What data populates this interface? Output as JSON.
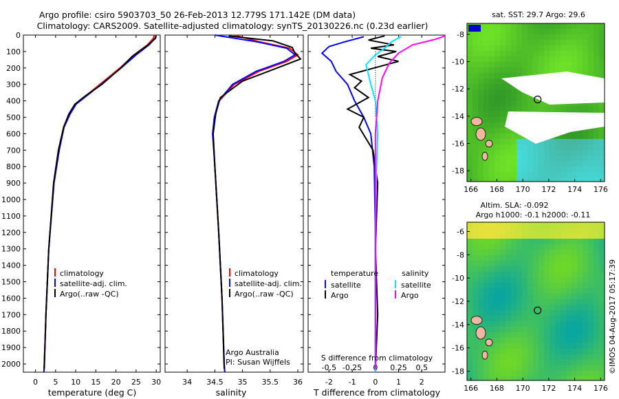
{
  "header": {
    "line1": "Argo profile: csiro 5903703_50 26-Feb-2013 12.779S 171.142E (DM data)",
    "line2": "Climatology: CARS2009. Satellite-adjusted climatology: synTS_20130226.nc (0.23d earlier)"
  },
  "colors": {
    "climatology": "#ff0000",
    "satellite": "#0000ff",
    "argo": "#000000",
    "sat_salinity": "#00e5ff",
    "argo_salinity": "#ff00ff"
  },
  "chart_data": [
    {
      "type": "line",
      "id": "temperature",
      "xlabel": "temperature (deg C)",
      "ylabel": "",
      "xticks": [
        0,
        5,
        10,
        15,
        20,
        25,
        30
      ],
      "xlim": [
        -3,
        31
      ],
      "yticks": [
        0,
        100,
        200,
        300,
        400,
        500,
        600,
        700,
        800,
        900,
        1000,
        1100,
        1200,
        1300,
        1400,
        1500,
        1600,
        1700,
        1800,
        1900,
        2000
      ],
      "ylim": [
        0,
        2050
      ],
      "legend": [
        "climatology",
        "satellite-adj. clim.",
        "Argo(..raw -QC)"
      ],
      "series": [
        {
          "name": "climatology",
          "color": "#ff0000",
          "x": [
            29.5,
            29.3,
            27.8,
            24.5,
            21.0,
            16.0,
            12.5,
            10.0,
            8.5,
            7.0,
            5.8,
            4.6,
            3.3,
            2.6,
            2.2,
            2.1
          ],
          "y": [
            0,
            20,
            60,
            120,
            200,
            300,
            370,
            420,
            480,
            560,
            700,
            900,
            1300,
            1700,
            2000,
            2050
          ]
        },
        {
          "name": "satellite-adj. clim.",
          "color": "#0000ff",
          "x": [
            30.0,
            29.7,
            28.2,
            25.0,
            21.3,
            16.3,
            12.7,
            10.1,
            8.6,
            7.1,
            5.9,
            4.6,
            3.3,
            2.6,
            2.2,
            2.1
          ],
          "y": [
            0,
            20,
            60,
            120,
            200,
            300,
            370,
            420,
            480,
            560,
            700,
            900,
            1300,
            1700,
            2000,
            2050
          ]
        },
        {
          "name": "Argo(..raw -QC)",
          "color": "#000000",
          "x": [
            29.9,
            29.8,
            28.0,
            24.0,
            21.2,
            16.5,
            12.4,
            9.8,
            8.3,
            7.0,
            5.7,
            4.5,
            3.3,
            2.6,
            2.2
          ],
          "y": [
            5,
            20,
            60,
            130,
            200,
            300,
            370,
            420,
            480,
            560,
            700,
            900,
            1300,
            1700,
            2030
          ]
        }
      ]
    },
    {
      "type": "line",
      "id": "salinity",
      "xlabel": "salinity",
      "xticks": [
        34,
        34.5,
        35,
        35.5,
        36
      ],
      "xlim": [
        33.6,
        36.1
      ],
      "ylim": [
        0,
        2050
      ],
      "legend": [
        "climatology",
        "satellite-adj. clim.",
        "Argo(..raw -QC)"
      ],
      "annotation": [
        "Argo Australia",
        "PI: Susan Wijffels"
      ],
      "series": [
        {
          "name": "climatology",
          "color": "#ff0000",
          "x": [
            34.85,
            35.3,
            35.85,
            36.0,
            35.8,
            35.3,
            34.85,
            34.58,
            34.5,
            34.47,
            34.5,
            34.57,
            34.63,
            34.67,
            34.68
          ],
          "y": [
            0,
            40,
            80,
            120,
            160,
            220,
            300,
            400,
            500,
            600,
            800,
            1200,
            1600,
            2000,
            2050
          ]
        },
        {
          "name": "satellite-adj. clim.",
          "color": "#0000ff",
          "x": [
            34.5,
            35.25,
            35.8,
            35.95,
            35.75,
            35.25,
            34.82,
            34.57,
            34.49,
            34.46,
            34.5,
            34.57,
            34.63,
            34.67,
            34.68
          ],
          "y": [
            0,
            40,
            80,
            120,
            160,
            220,
            300,
            400,
            500,
            600,
            800,
            1200,
            1600,
            2000,
            2050
          ]
        },
        {
          "name": "Argo(..raw -QC)",
          "color": "#000000",
          "x": [
            34.75,
            35.55,
            35.9,
            35.95,
            36.05,
            35.55,
            35.0,
            34.6,
            34.52,
            34.47,
            34.5,
            34.57,
            34.63,
            34.67
          ],
          "y": [
            5,
            35,
            75,
            110,
            145,
            210,
            280,
            380,
            470,
            600,
            800,
            1200,
            1600,
            2030
          ]
        }
      ]
    },
    {
      "type": "line",
      "id": "difference",
      "xlabel": "T difference from climatology",
      "xlabel2": "S difference from climatology",
      "xticks": [
        -2,
        -1,
        0,
        1,
        2
      ],
      "xticks2": [
        "-0.5",
        "-0.25",
        "0",
        "0.25",
        "0.5"
      ],
      "xlim": [
        -2.9,
        3.0
      ],
      "ylim": [
        0,
        2050
      ],
      "legend_titles": [
        "temperature",
        "salinity"
      ],
      "legend": [
        "satellite",
        "Argo",
        "satellite",
        "Argo"
      ],
      "series": [
        {
          "name": "temperature satellite",
          "color": "#0000ff",
          "x": [
            -0.5,
            -1.3,
            -2.0,
            -2.3,
            -1.9,
            -1.7,
            -1.2,
            -0.9,
            -0.5,
            -0.2,
            -0.05,
            0.0,
            0.0
          ],
          "y": [
            10,
            40,
            70,
            110,
            160,
            220,
            300,
            400,
            500,
            600,
            800,
            1200,
            2050
          ]
        },
        {
          "name": "temperature Argo",
          "color": "#000000",
          "x": [
            0.4,
            -0.3,
            0.8,
            -0.2,
            0.9,
            0.1,
            1.0,
            -1.1,
            -0.6,
            -0.9,
            -0.3,
            -1.2,
            -0.5,
            -0.7,
            -0.1,
            0.1,
            0.0,
            0.1,
            0.0
          ],
          "y": [
            5,
            30,
            60,
            80,
            100,
            130,
            160,
            240,
            280,
            320,
            380,
            450,
            500,
            560,
            700,
            900,
            1300,
            1700,
            2030
          ]
        },
        {
          "name": "salinity satellite",
          "color": "#00e5ff",
          "x": [
            1.1,
            0.7,
            0.4,
            0.0,
            -0.4,
            -0.2,
            0.0,
            0.1,
            0.05,
            0.0,
            0.0,
            0.0
          ],
          "y": [
            10,
            40,
            80,
            120,
            180,
            300,
            400,
            600,
            800,
            1200,
            1600,
            2050
          ]
        },
        {
          "name": "salinity Argo",
          "color": "#ff00ff",
          "x": [
            3.0,
            2.6,
            1.6,
            1.0,
            0.6,
            0.3,
            0.1,
            0.0,
            0.0,
            0.0
          ],
          "y": [
            5,
            25,
            60,
            110,
            170,
            260,
            400,
            600,
            1000,
            2030
          ]
        }
      ]
    }
  ],
  "maps": {
    "sst": {
      "title": "sat. SST: 29.7 Argo: 29.6",
      "xticks": [
        "166",
        "168",
        "170",
        "172",
        "174",
        "176"
      ],
      "yticks": [
        "-8",
        "-10",
        "-12",
        "-14",
        "-16",
        "-18"
      ]
    },
    "sla": {
      "title1": "Altim. SLA: -0.092",
      "title2": "Argo h1000: -0.1 h2000: -0.11",
      "xticks": [
        "166",
        "168",
        "170",
        "172",
        "174",
        "176"
      ],
      "yticks": [
        "-6",
        "-8",
        "-10",
        "-12",
        "-14",
        "-16",
        "-18"
      ]
    }
  },
  "stamp": "©IMOS 04-Aug-2017 05:17:39"
}
